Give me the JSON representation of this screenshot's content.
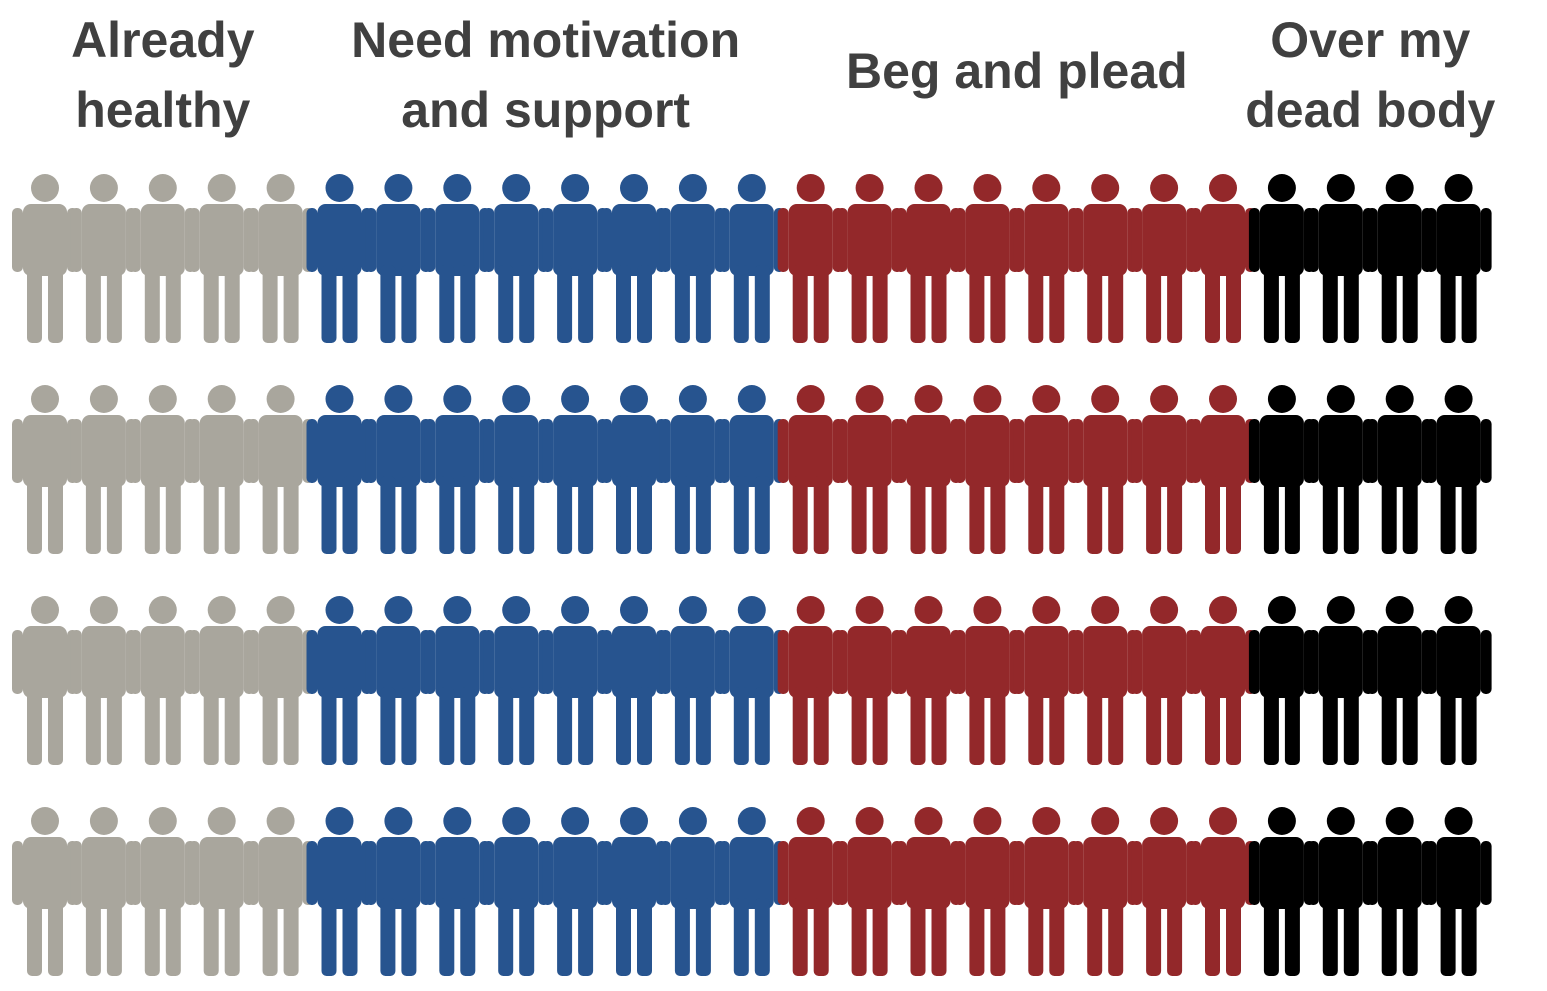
{
  "chart_data": {
    "type": "pictogram",
    "categories": [
      [
        "Already",
        "healthy"
      ],
      [
        "Need motivation",
        "and support"
      ],
      [
        "Beg and plead"
      ],
      [
        "Over my",
        "dead body"
      ]
    ],
    "values": [
      5,
      8,
      8,
      4
    ],
    "rows": 4,
    "colors": [
      "#a9a69d",
      "#27548f",
      "#93282a",
      "#000000"
    ]
  }
}
